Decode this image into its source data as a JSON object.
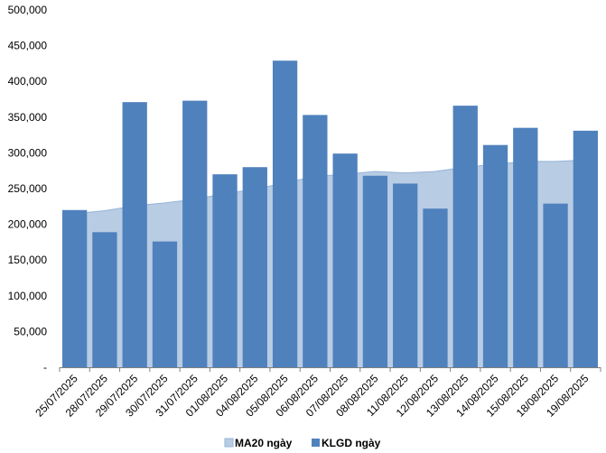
{
  "chart_data": {
    "type": "bar",
    "categories": [
      "25/07/2025",
      "28/07/2025",
      "29/07/2025",
      "30/07/2025",
      "31/07/2025",
      "01/08/2025",
      "04/08/2025",
      "05/08/2025",
      "06/08/2025",
      "07/08/2025",
      "08/08/2025",
      "11/08/2025",
      "12/08/2025",
      "13/08/2025",
      "14/08/2025",
      "15/08/2025",
      "18/08/2025",
      "19/08/2025"
    ],
    "series": [
      {
        "name": "MA20 ngày",
        "kind": "area",
        "color": "#b8cce4",
        "values": [
          215000,
          219000,
          226000,
          230000,
          235000,
          243000,
          249000,
          258000,
          267000,
          270000,
          274000,
          272000,
          274000,
          280000,
          284000,
          288000,
          288000,
          290000
        ]
      },
      {
        "name": "KLGD ngày",
        "kind": "bar",
        "color": "#4f81bd",
        "values": [
          220000,
          189000,
          371000,
          176000,
          373000,
          270000,
          280000,
          429000,
          353000,
          299000,
          268000,
          257000,
          222000,
          366000,
          311000,
          335000,
          229000,
          331000
        ]
      }
    ],
    "yticks": [
      "-",
      "50,000",
      "100,000",
      "150,000",
      "200,000",
      "250,000",
      "300,000",
      "350,000",
      "400,000",
      "450,000",
      "500,000"
    ],
    "ylim": [
      0,
      500000
    ],
    "grid": false,
    "legend": "bottom"
  }
}
